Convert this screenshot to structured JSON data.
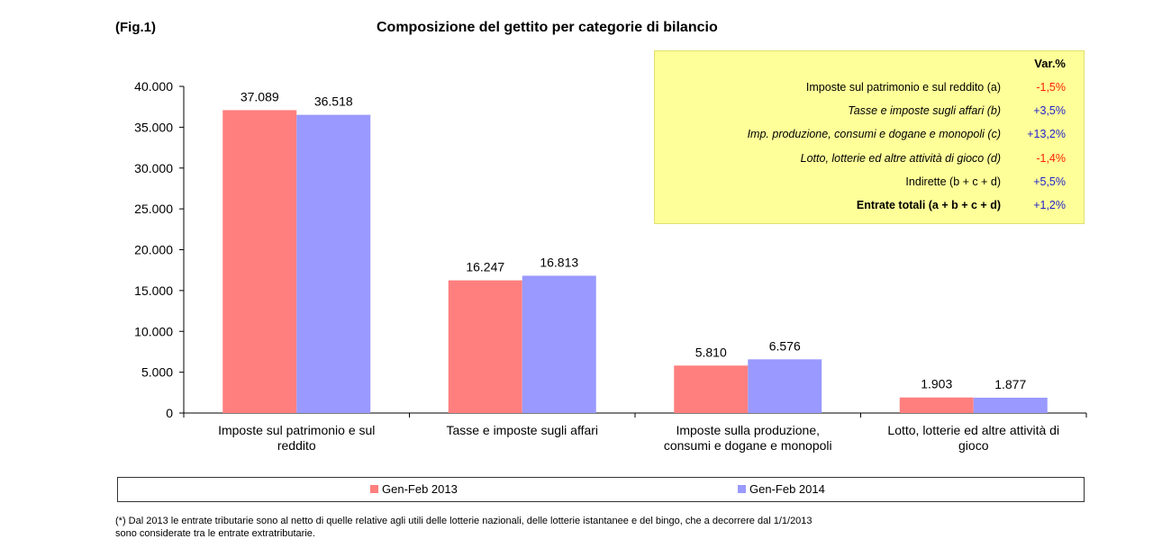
{
  "figure": {
    "label": "(Fig.1)",
    "title": "Composizione del gettito per categorie di bilancio"
  },
  "chart_data": {
    "type": "bar",
    "title": "Composizione del gettito per categorie di bilancio",
    "categories": [
      [
        "Imposte sul patrimonio e sul",
        "reddito"
      ],
      [
        "Tasse e imposte sugli affari"
      ],
      [
        "Imposte sulla produzione,",
        "consumi e dogane e monopoli"
      ],
      [
        "Lotto, lotterie ed altre attività di",
        "gioco"
      ]
    ],
    "series": [
      {
        "name": "Gen-Feb 2013",
        "color": "#ff7f7f",
        "values": [
          37089,
          16247,
          5810,
          1903
        ],
        "labels": [
          "37.089",
          "16.247",
          "5.810",
          "1.903"
        ]
      },
      {
        "name": "Gen-Feb 2014",
        "color": "#9999ff",
        "values": [
          36518,
          16813,
          6576,
          1877
        ],
        "labels": [
          "36.518",
          "16.813",
          "6.576",
          "1.877"
        ]
      }
    ],
    "ylim": [
      0,
      40000
    ],
    "yticks": [
      0,
      5000,
      10000,
      15000,
      20000,
      25000,
      30000,
      35000,
      40000
    ],
    "ytick_labels": [
      "0",
      "5.000",
      "10.000",
      "15.000",
      "20.000",
      "25.000",
      "30.000",
      "35.000",
      "40.000"
    ],
    "grid": false,
    "legend_position": "bottom"
  },
  "variation_table": {
    "header": "Var.%",
    "rows": [
      {
        "label": "Imposte sul patrimonio e sul reddito (a)",
        "value": "-1,5%",
        "style": "normal",
        "color": "#ff2200"
      },
      {
        "label": "Tasse e imposte sugli affari (b)",
        "value": "+3,5%",
        "style": "italic",
        "color": "#2222cc"
      },
      {
        "label": "Imp. produzione, consumi e dogane e monopoli (c)",
        "value": "+13,2%",
        "style": "italic",
        "color": "#2222cc"
      },
      {
        "label": "Lotto, lotterie ed altre attività di gioco (d)",
        "value": "-1,4%",
        "style": "italic",
        "color": "#ff2200"
      },
      {
        "label": "Indirette (b + c + d)",
        "value": "+5,5%",
        "style": "normal",
        "color": "#2222cc"
      },
      {
        "label": "Entrate totali (a + b + c + d)",
        "value": "+1,2%",
        "style": "bold",
        "color": "#2222cc"
      }
    ]
  },
  "legend": {
    "items": [
      {
        "label": "Gen-Feb 2013",
        "color": "#ff7f7f"
      },
      {
        "label": "Gen-Feb 2014",
        "color": "#9999ff"
      }
    ]
  },
  "footnote": {
    "line1": "(*) Dal 2013 le entrate tributarie sono al netto di quelle relative agli utili delle lotterie nazionali, delle lotterie istantanee e del bingo, che a decorrere dal 1/1/2013",
    "line2": "sono considerate tra le entrate extratributarie."
  }
}
